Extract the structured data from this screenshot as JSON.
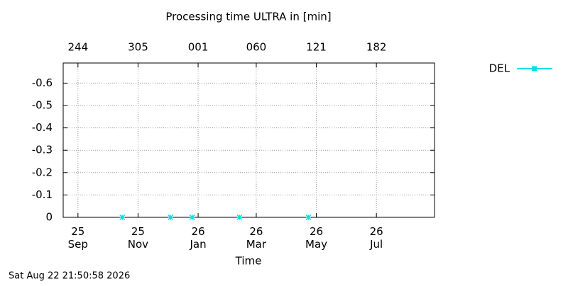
{
  "chart_data": {
    "type": "line",
    "title": "Processing time ULTRA in [min]",
    "xlabel": "Time",
    "timestamp": "Sat Aug 22 21:50:58 2026",
    "x": [
      "2025-10-16",
      "2025-12-04",
      "2025-12-26",
      "2026-02-12",
      "2026-04-23"
    ],
    "series": [
      {
        "name": "DEL",
        "color": "#00e0e0",
        "values": [
          0,
          0,
          0,
          0,
          0
        ]
      }
    ],
    "xlim": [
      "2025-08-17",
      "2026-08-29"
    ],
    "xticks": [
      {
        "value": "2025-09-01",
        "label": "25\nSep"
      },
      {
        "value": "2025-11-01",
        "label": "25\nNov"
      },
      {
        "value": "2026-01-01",
        "label": "26\nJan"
      },
      {
        "value": "2026-03-01",
        "label": "26\nMar"
      },
      {
        "value": "2026-05-01",
        "label": "26\nMay"
      },
      {
        "value": "2026-07-01",
        "label": "26\nJul"
      }
    ],
    "x2ticks": [
      {
        "value": "2025-09-01",
        "label": "244"
      },
      {
        "value": "2025-11-01",
        "label": "305"
      },
      {
        "value": "2026-01-01",
        "label": "001"
      },
      {
        "value": "2026-03-01",
        "label": "060"
      },
      {
        "value": "2026-05-01",
        "label": "121"
      },
      {
        "value": "2026-07-01",
        "label": "182"
      }
    ],
    "ylim": [
      0,
      -0.69
    ],
    "yticks": [
      0,
      -0.1,
      -0.2,
      -0.3,
      -0.4,
      -0.5,
      -0.6
    ],
    "grid": true,
    "legend": "top-right"
  }
}
